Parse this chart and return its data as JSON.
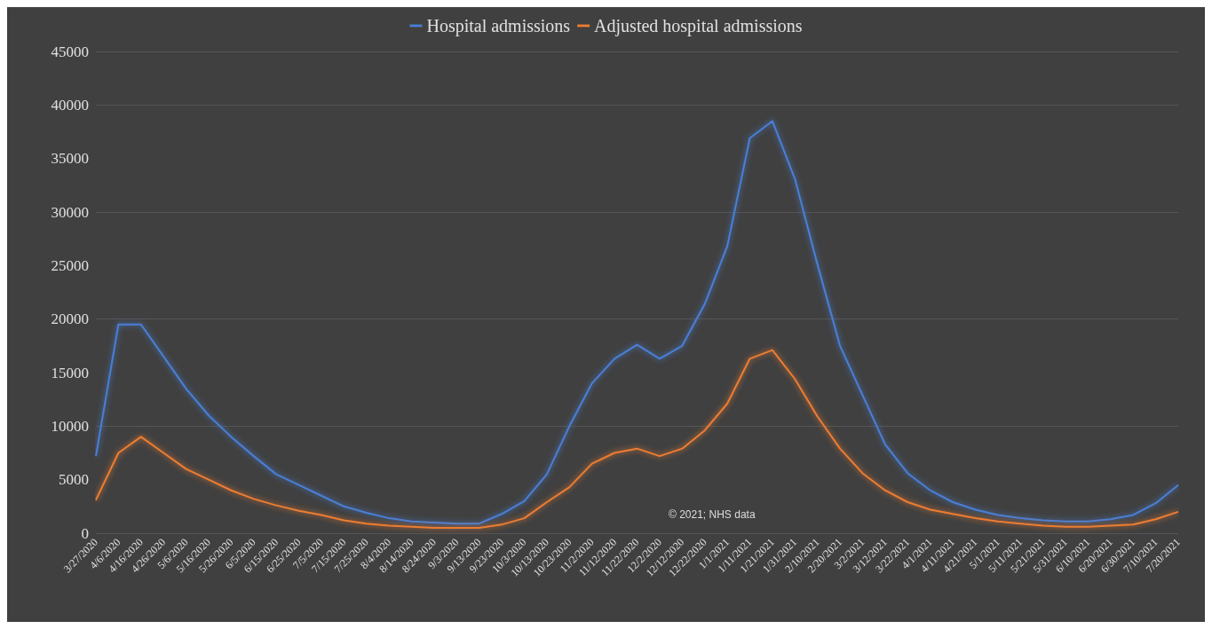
{
  "chart_data": {
    "type": "line",
    "categories": [
      "3/27/2020",
      "4/6/2020",
      "4/16/2020",
      "4/26/2020",
      "5/6/2020",
      "5/16/2020",
      "5/26/2020",
      "6/5/2020",
      "6/15/2020",
      "6/25/2020",
      "7/5/2020",
      "7/15/2020",
      "7/25/2020",
      "8/4/2020",
      "8/14/2020",
      "8/24/2020",
      "9/3/2020",
      "9/13/2020",
      "9/23/2020",
      "10/3/2020",
      "10/13/2020",
      "10/23/2020",
      "11/2/2020",
      "11/12/2020",
      "11/22/2020",
      "12/2/2020",
      "12/12/2020",
      "12/22/2020",
      "1/1/2021",
      "1/11/2021",
      "1/21/2021",
      "1/31/2021",
      "2/10/2021",
      "2/20/2021",
      "3/2/2021",
      "3/12/2021",
      "3/22/2021",
      "4/1/2021",
      "4/11/2021",
      "4/21/2021",
      "5/1/2021",
      "5/11/2021",
      "5/21/2021",
      "5/31/2021",
      "6/10/2021",
      "6/20/2021",
      "6/30/2021",
      "7/10/2021",
      "7/20/2021"
    ],
    "series": [
      {
        "name": "Hospital admissions",
        "color": "#4a7fd6",
        "values": [
          7200,
          19500,
          19500,
          16500,
          13500,
          11000,
          9000,
          7200,
          5500,
          4500,
          3500,
          2500,
          1900,
          1400,
          1100,
          1000,
          900,
          900,
          1800,
          3000,
          5500,
          10000,
          14000,
          16300,
          17600,
          16300,
          17500,
          21400,
          26800,
          36900,
          38500,
          33100,
          25100,
          17500,
          12900,
          8300,
          5600,
          4000,
          2900,
          2200,
          1700,
          1400,
          1200,
          1100,
          1100,
          1300,
          1700,
          2800,
          4500
        ]
      },
      {
        "name": "Adjusted hospital admissions",
        "color": "#ed7d31",
        "values": [
          3100,
          7500,
          9000,
          7500,
          6000,
          5000,
          4000,
          3200,
          2600,
          2100,
          1700,
          1200,
          900,
          700,
          600,
          500,
          500,
          500,
          800,
          1400,
          2900,
          4300,
          6500,
          7500,
          7900,
          7200,
          7900,
          9600,
          12100,
          16300,
          17100,
          14400,
          10900,
          7900,
          5600,
          4000,
          2900,
          2200,
          1800,
          1400,
          1100,
          900,
          700,
          600,
          600,
          700,
          800,
          1300,
          2000
        ]
      }
    ],
    "ylim": [
      0,
      45000
    ],
    "yticks": [
      0,
      5000,
      10000,
      15000,
      20000,
      25000,
      30000,
      35000,
      40000,
      45000
    ],
    "grid": "y",
    "legend": "top",
    "marker": "none",
    "line_style": "solid",
    "annotations": [
      "© 2021; NHS data"
    ]
  }
}
